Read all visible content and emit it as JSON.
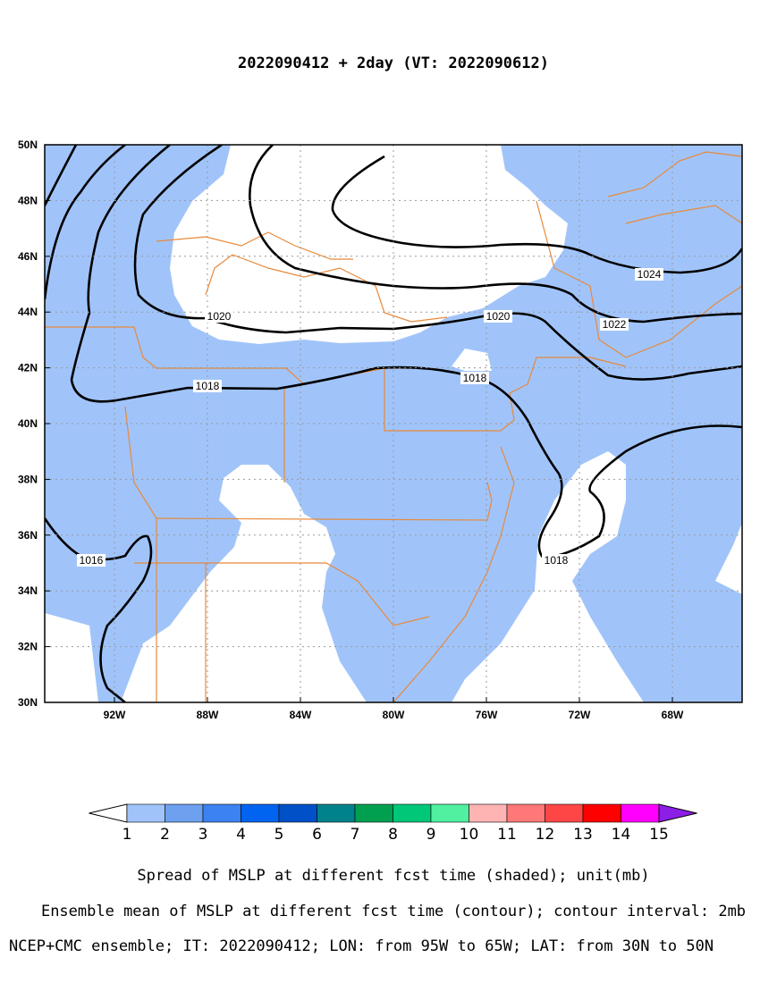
{
  "title": "2022090412 + 2day (VT: 2022090612)",
  "map": {
    "lonlim": [
      -95,
      -65
    ],
    "latlim": [
      30,
      50
    ],
    "xticks": [
      {
        "value": -92,
        "label": "92W"
      },
      {
        "value": -88,
        "label": "88W"
      },
      {
        "value": -84,
        "label": "84W"
      },
      {
        "value": -80,
        "label": "80W"
      },
      {
        "value": -76,
        "label": "76W"
      },
      {
        "value": -72,
        "label": "72W"
      },
      {
        "value": -68,
        "label": "68W"
      }
    ],
    "yticks": [
      {
        "value": 30,
        "label": "30N"
      },
      {
        "value": 32,
        "label": "32N"
      },
      {
        "value": 34,
        "label": "34N"
      },
      {
        "value": 36,
        "label": "36N"
      },
      {
        "value": 38,
        "label": "38N"
      },
      {
        "value": 40,
        "label": "40N"
      },
      {
        "value": 42,
        "label": "42N"
      },
      {
        "value": 44,
        "label": "44N"
      },
      {
        "value": 46,
        "label": "46N"
      },
      {
        "value": 48,
        "label": "48N"
      },
      {
        "value": 50,
        "label": "50N"
      }
    ],
    "grid": true,
    "contour_labels": [
      1024,
      1022,
      1020,
      1020,
      1018,
      1018,
      1016,
      1018
    ]
  },
  "colorbar": {
    "labels": [
      1,
      2,
      3,
      4,
      5,
      6,
      7,
      8,
      9,
      10,
      11,
      12,
      13,
      14,
      15
    ],
    "colors": [
      "#a0c4fa",
      "#6ea0f0",
      "#3c82f0",
      "#0064f0",
      "#0050c8",
      "#00828c",
      "#00a050",
      "#00c878",
      "#50f0a0",
      "#ffb4b4",
      "#ff7878",
      "#ff4646",
      "#ff0000",
      "#ff00ff"
    ],
    "under_color": "#ffffff",
    "over_color": "#8c1ee6"
  },
  "captions": [
    "Spread of MSLP at different fcst time (shaded); unit(mb)",
    "Ensemble mean of MSLP at different fcst time (contour); contour interval: 2mb",
    "NCEP+CMC ensemble; IT: 2022090412; LON: from 95W to 65W; LAT: from 30N to 50N"
  ]
}
